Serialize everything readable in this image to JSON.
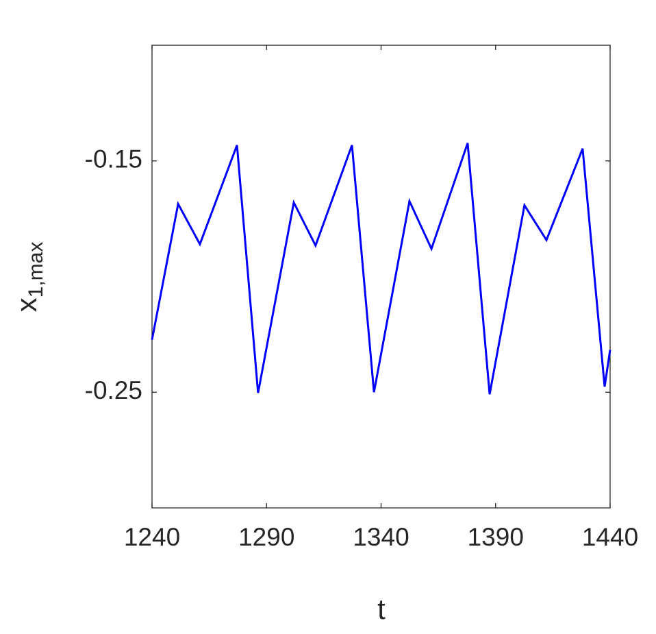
{
  "chart_data": {
    "type": "line",
    "xlabel": "t",
    "ylabel": "x",
    "ylabel_subscript": "1,max",
    "x": [
      1240,
      1251.4,
      1260.9,
      1277.1,
      1286.3,
      1301.9,
      1311.4,
      1327.3,
      1336.9,
      1352.4,
      1362.0,
      1377.8,
      1387.4,
      1402.6,
      1412.2,
      1428.0,
      1437.6,
      1440
    ],
    "series": [
      {
        "color": "#0000ff",
        "values": [
          -0.2273,
          -0.1686,
          -0.186,
          -0.1432,
          -0.2503,
          -0.168,
          -0.1866,
          -0.1432,
          -0.25,
          -0.1674,
          -0.188,
          -0.1423,
          -0.2509,
          -0.1692,
          -0.1842,
          -0.1447,
          -0.2476,
          -0.2317
        ]
      }
    ],
    "xlim": [
      1240,
      1440
    ],
    "xticks": [
      1240,
      1290,
      1340,
      1390,
      1440
    ],
    "ylim": [
      -0.3,
      -0.1
    ],
    "yticks": [
      -0.25,
      -0.15
    ]
  }
}
